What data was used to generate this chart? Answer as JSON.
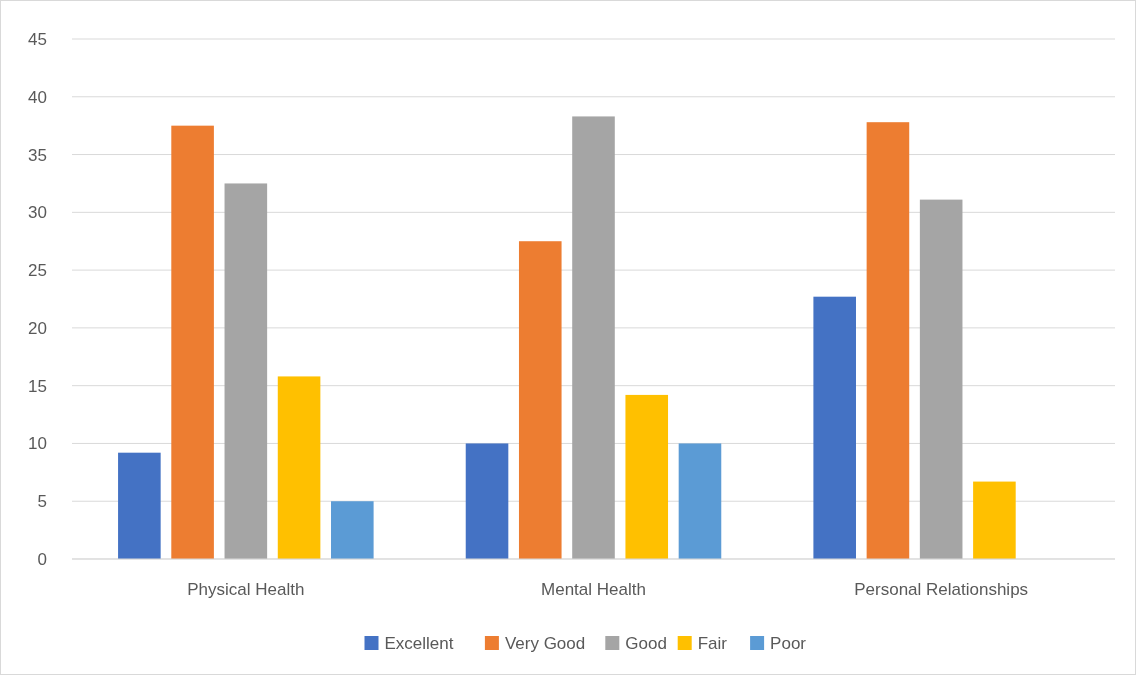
{
  "chart_data": {
    "type": "bar",
    "categories": [
      "Physical Health",
      "Mental Health",
      "Personal Relationships"
    ],
    "series": [
      {
        "name": "Excellent",
        "color": "#4472c4",
        "values": [
          9.2,
          10,
          22.7
        ]
      },
      {
        "name": "Very Good",
        "color": "#ed7d31",
        "values": [
          37.5,
          27.5,
          37.8
        ]
      },
      {
        "name": "Good",
        "color": "#a5a5a5",
        "values": [
          32.5,
          38.3,
          31.1
        ]
      },
      {
        "name": "Fair",
        "color": "#ffc000",
        "values": [
          15.8,
          14.2,
          6.7
        ]
      },
      {
        "name": "Poor",
        "color": "#5b9bd5",
        "values": [
          5,
          10,
          null
        ]
      }
    ],
    "ylim": [
      0,
      45
    ],
    "yticks": [
      0,
      5,
      10,
      15,
      20,
      25,
      30,
      35,
      40,
      45
    ],
    "grid": "y",
    "legend": "bottom"
  }
}
